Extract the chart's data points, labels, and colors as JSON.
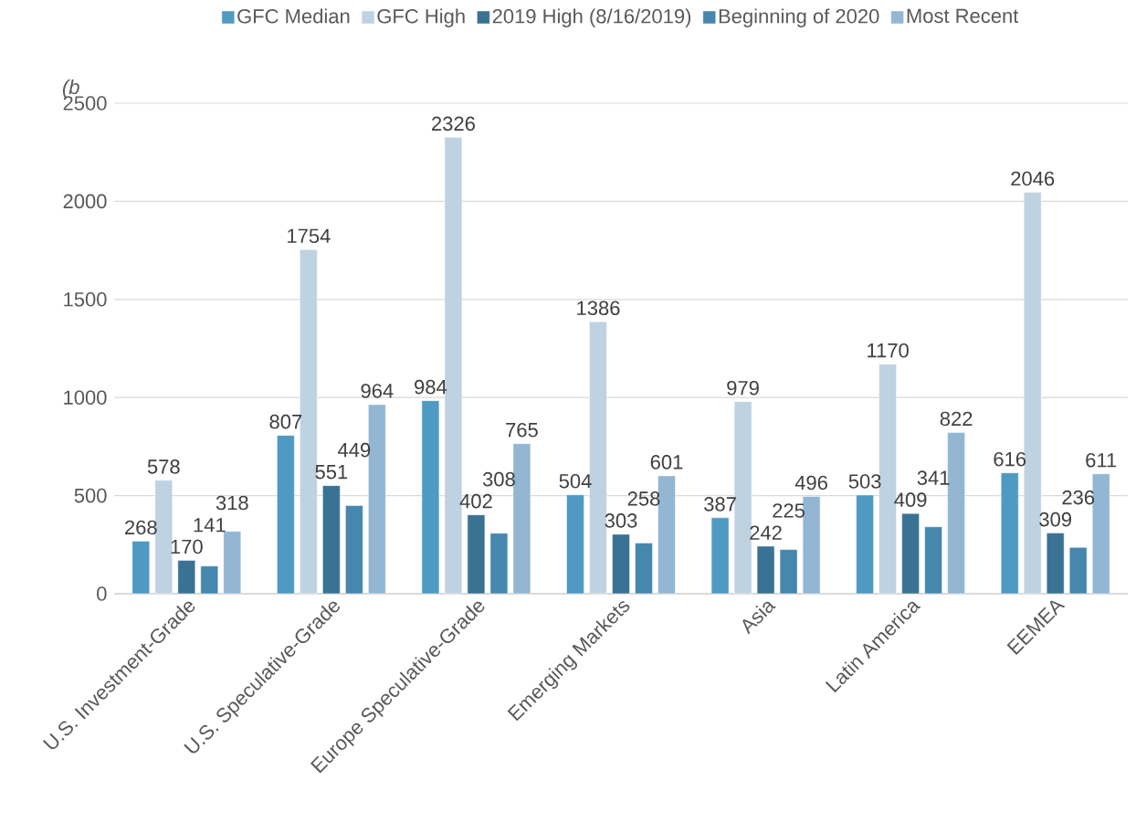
{
  "chart_data": {
    "type": "bar",
    "ylabel": "(b",
    "categories": [
      "U.S. Investment-Grade",
      "U.S. Speculative-Grade",
      "Europe Speculative-Grade",
      "Emerging Markets",
      "Asia",
      "Latin America",
      "EEMEA"
    ],
    "series": [
      {
        "name": "GFC Median",
        "color": "#4e9ac3",
        "values": [
          268,
          807,
          984,
          504,
          387,
          503,
          616
        ]
      },
      {
        "name": "GFC High",
        "color": "#bed2e2",
        "values": [
          578,
          1754,
          2326,
          1386,
          979,
          1170,
          2046
        ]
      },
      {
        "name": "2019 High (8/16/2019)",
        "color": "#3a7293",
        "values": [
          170,
          551,
          402,
          303,
          242,
          409,
          309
        ]
      },
      {
        "name": "Beginning of 2020",
        "color": "#4587ad",
        "values": [
          141,
          449,
          308,
          258,
          225,
          341,
          236
        ]
      },
      {
        "name": "Most Recent",
        "color": "#93b6d2",
        "values": [
          318,
          964,
          765,
          601,
          496,
          822,
          611
        ]
      }
    ],
    "ylim": [
      0,
      2500
    ],
    "yticks": [
      0,
      500,
      1000,
      1500,
      2000,
      2500
    ],
    "grid": "y",
    "legend": "top",
    "data_labels": true
  }
}
